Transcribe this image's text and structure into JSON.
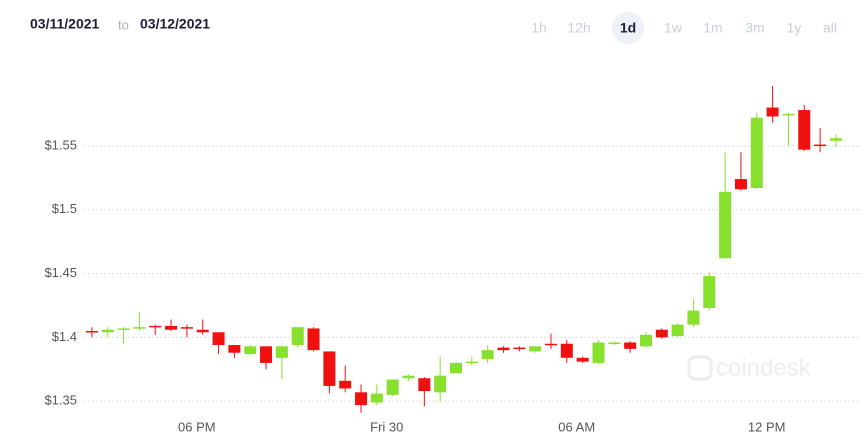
{
  "header": {
    "from": "03/11/2021",
    "separator": "to",
    "to": "03/12/2021"
  },
  "range_buttons": [
    "1h",
    "12h",
    "1d",
    "1w",
    "1m",
    "3m",
    "1y",
    "all"
  ],
  "selected_range": "1d",
  "watermark": "coindesk",
  "chart_data": {
    "type": "candlestick",
    "categories": [
      null,
      null,
      null,
      null,
      null,
      null,
      null,
      "06 PM",
      null,
      null,
      null,
      null,
      null,
      null,
      null,
      null,
      null,
      null,
      null,
      "Fri 30",
      null,
      null,
      null,
      null,
      null,
      null,
      null,
      null,
      null,
      null,
      null,
      "06 AM",
      null,
      null,
      null,
      null,
      null,
      null,
      null,
      null,
      null,
      null,
      null,
      "12 PM",
      null,
      null,
      null,
      null
    ],
    "open": [
      1.405,
      1.404,
      1.406,
      1.407,
      1.409,
      1.409,
      1.408,
      1.406,
      1.404,
      1.394,
      1.387,
      1.393,
      1.384,
      1.394,
      1.407,
      1.389,
      1.366,
      1.357,
      1.349,
      1.355,
      1.368,
      1.368,
      1.357,
      1.372,
      1.38,
      1.383,
      1.392,
      1.392,
      1.389,
      1.395,
      1.395,
      1.384,
      1.38,
      1.395,
      1.396,
      1.393,
      1.406,
      1.401,
      1.41,
      1.423,
      1.462,
      1.524,
      1.517,
      1.58,
      1.574,
      1.578,
      1.551,
      1.554
    ],
    "high": [
      1.408,
      1.408,
      1.408,
      1.42,
      1.41,
      1.414,
      1.41,
      1.414,
      1.404,
      1.394,
      1.394,
      1.393,
      1.394,
      1.408,
      1.408,
      1.389,
      1.378,
      1.363,
      1.363,
      1.367,
      1.371,
      1.369,
      1.385,
      1.381,
      1.385,
      1.394,
      1.393,
      1.393,
      1.393,
      1.403,
      1.398,
      1.385,
      1.398,
      1.397,
      1.397,
      1.404,
      1.407,
      1.411,
      1.43,
      1.451,
      1.545,
      1.545,
      1.576,
      1.597,
      1.576,
      1.582,
      1.564,
      1.559
    ],
    "low": [
      1.4,
      1.4,
      1.395,
      1.405,
      1.402,
      1.405,
      1.4,
      1.402,
      1.387,
      1.384,
      1.386,
      1.375,
      1.367,
      1.392,
      1.389,
      1.356,
      1.357,
      1.341,
      1.347,
      1.354,
      1.366,
      1.346,
      1.35,
      1.372,
      1.378,
      1.38,
      1.388,
      1.389,
      1.388,
      1.391,
      1.38,
      1.38,
      1.379,
      1.394,
      1.388,
      1.392,
      1.399,
      1.4,
      1.408,
      1.421,
      1.462,
      1.515,
      1.516,
      1.568,
      1.55,
      1.546,
      1.545,
      1.549
    ],
    "close": [
      1.404,
      1.406,
      1.407,
      1.408,
      1.408,
      1.406,
      1.407,
      1.404,
      1.394,
      1.388,
      1.393,
      1.38,
      1.393,
      1.408,
      1.39,
      1.362,
      1.36,
      1.347,
      1.356,
      1.367,
      1.37,
      1.358,
      1.37,
      1.38,
      1.381,
      1.39,
      1.39,
      1.391,
      1.393,
      1.394,
      1.384,
      1.381,
      1.396,
      1.396,
      1.391,
      1.402,
      1.4,
      1.41,
      1.421,
      1.448,
      1.514,
      1.516,
      1.572,
      1.573,
      1.575,
      1.547,
      1.55,
      1.556
    ],
    "up_color": "#86e02c",
    "down_color": "#f01010",
    "ylim": [
      1.34,
      1.6
    ],
    "yticks": [
      {
        "value": 1.35,
        "label": "$1.35"
      },
      {
        "value": 1.4,
        "label": "$1.4"
      },
      {
        "value": 1.45,
        "label": "$1.45"
      },
      {
        "value": 1.5,
        "label": "$1.5"
      },
      {
        "value": 1.55,
        "label": "$1.55"
      }
    ],
    "grid": true
  }
}
